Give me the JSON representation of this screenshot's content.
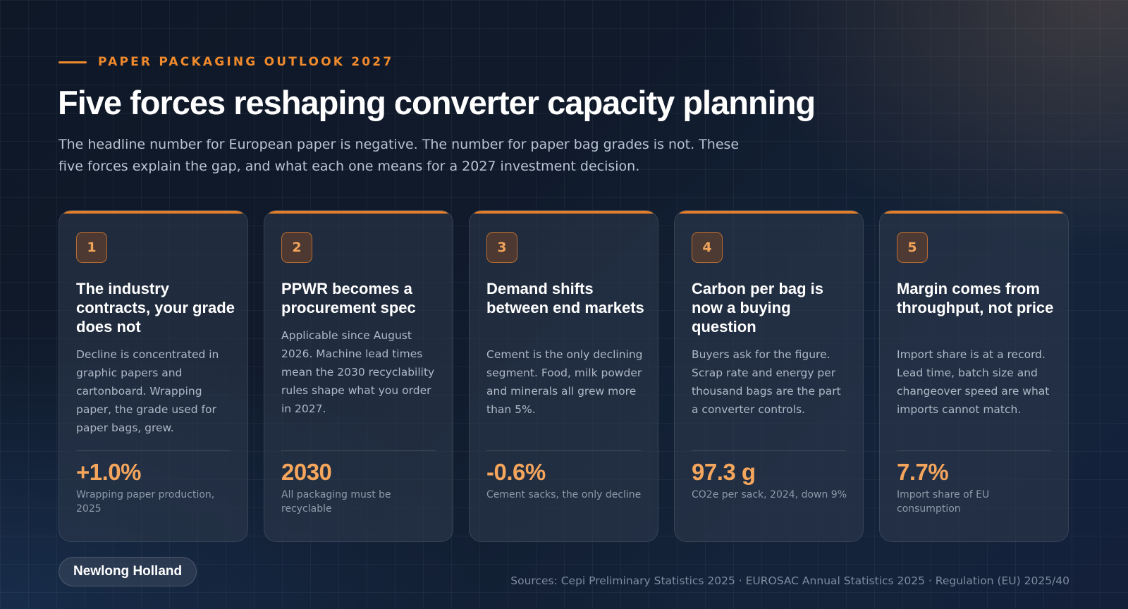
{
  "header": {
    "eyebrow": "PAPER PACKAGING OUTLOOK 2027",
    "title": "Five forces reshaping converter capacity planning",
    "subtitle": "The headline number for European paper is negative. The number for paper bag grades is not. These five forces explain the gap, and what each one means for a 2027 investment decision."
  },
  "cards": [
    {
      "number": "1",
      "title": "The industry contracts, your grade does not",
      "body": "Decline is concentrated in graphic papers and cartonboard. Wrapping paper, the grade used for paper bags, grew.",
      "stat": "+1.0%",
      "stat_label": "Wrapping paper production, 2025"
    },
    {
      "number": "2",
      "title": "PPWR becomes a procurement spec",
      "body": "Applicable since August 2026. Machine lead times mean the 2030 recyclability rules shape what you order in 2027.",
      "stat": "2030",
      "stat_label": "All packaging must be recyclable"
    },
    {
      "number": "3",
      "title": "Demand shifts between end markets",
      "body": "Cement is the only declining segment. Food, milk powder and minerals all grew more than 5%.",
      "stat": "-0.6%",
      "stat_label": "Cement sacks, the only decline"
    },
    {
      "number": "4",
      "title": "Carbon per bag is now a buying question",
      "body": "Buyers ask for the figure. Scrap rate and energy per thousand bags are the part a converter controls.",
      "stat": "97.3 g",
      "stat_label": "CO2e per sack, 2024, down 9%"
    },
    {
      "number": "5",
      "title": "Margin comes from throughput, not price",
      "body": "Import share is at a record. Lead time, batch size and changeover speed are what imports cannot match.",
      "stat": "7.7%",
      "stat_label": "Import share of EU consumption"
    }
  ],
  "footer": {
    "brand": "Newlong Holland",
    "sources": "Sources: Cepi Preliminary Statistics 2025 · EUROSAC Annual Statistics 2025 · Regulation (EU) 2025/40"
  },
  "colors": {
    "accent": "#f08a2c",
    "stat": "#f5a65c",
    "background": "#101a2b"
  }
}
